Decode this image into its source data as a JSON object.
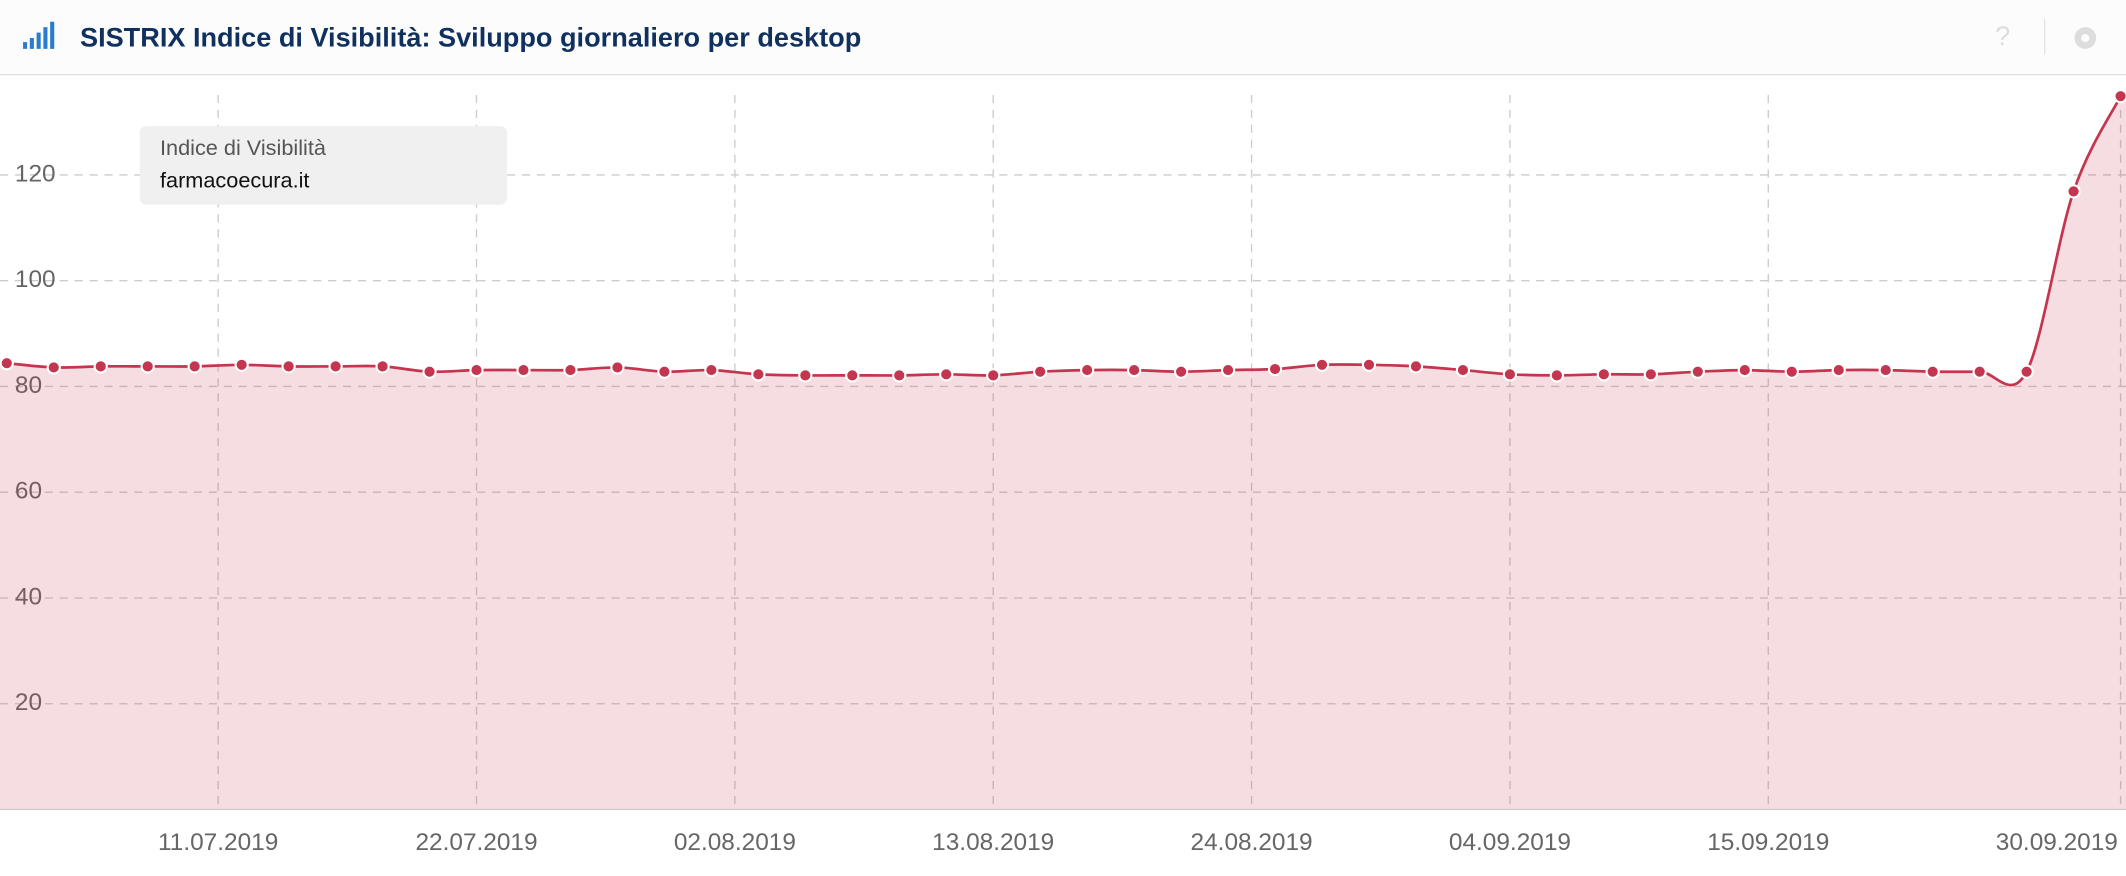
{
  "header": {
    "title": "SISTRIX Indice di Visibilità: Sviluppo giornaliero per desktop"
  },
  "chart_data": {
    "type": "line",
    "legend": {
      "title": "Indice di Visibilità"
    },
    "x": [
      "02.07.2019",
      "04.07.2019",
      "06.07.2019",
      "08.07.2019",
      "10.07.2019",
      "12.07.2019",
      "14.07.2019",
      "16.07.2019",
      "18.07.2019",
      "20.07.2019",
      "22.07.2019",
      "24.07.2019",
      "26.07.2019",
      "28.07.2019",
      "30.07.2019",
      "01.08.2019",
      "03.08.2019",
      "05.08.2019",
      "07.08.2019",
      "09.08.2019",
      "11.08.2019",
      "13.08.2019",
      "15.08.2019",
      "17.08.2019",
      "19.08.2019",
      "21.08.2019",
      "23.08.2019",
      "25.08.2019",
      "27.08.2019",
      "29.08.2019",
      "31.08.2019",
      "02.09.2019",
      "04.09.2019",
      "06.09.2019",
      "08.09.2019",
      "10.09.2019",
      "12.09.2019",
      "14.09.2019",
      "16.09.2019",
      "18.09.2019",
      "20.09.2019",
      "22.09.2019",
      "24.09.2019",
      "26.09.2019",
      "28.09.2019",
      "30.09.2019"
    ],
    "series": [
      {
        "name": "farmacoecura.it",
        "color": "#c4354f",
        "values": [
          84.4,
          83.6,
          83.8,
          83.8,
          83.8,
          84.1,
          83.8,
          83.8,
          83.8,
          82.8,
          83.1,
          83.1,
          83.1,
          83.6,
          82.8,
          83.1,
          82.3,
          82.1,
          82.1,
          82.1,
          82.3,
          82.1,
          82.8,
          83.1,
          83.1,
          82.8,
          83.1,
          83.3,
          84.1,
          84.1,
          83.8,
          83.1,
          82.3,
          82.1,
          82.3,
          82.3,
          82.8,
          83.1,
          82.8,
          83.1,
          83.1,
          82.8,
          82.8,
          82.8,
          116.9,
          134.9
        ]
      }
    ],
    "xlim": [
      "02.07.2019",
      "30.09.2019"
    ],
    "xticks": [
      "11.07.2019",
      "22.07.2019",
      "02.08.2019",
      "13.08.2019",
      "24.08.2019",
      "04.09.2019",
      "15.09.2019",
      "30.09.2019"
    ],
    "ylim": [
      0,
      140
    ],
    "yticks": [
      20,
      40,
      60,
      80,
      100,
      120
    ],
    "grid": true
  }
}
